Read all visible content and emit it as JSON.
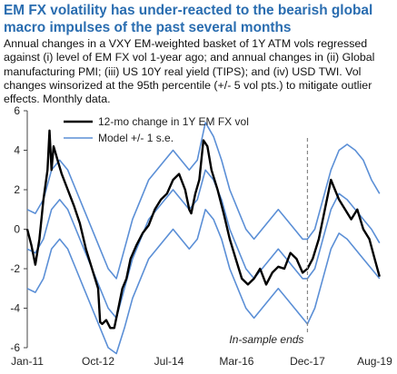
{
  "chart_data": {
    "type": "line",
    "title": "EM FX volatility has under-reacted to the bearish global macro impulses of the past several months",
    "subtitle": "Annual changes in a VXY EM-weighted basket of 1Y ATM vols regressed against (i) level of EM FX vol 1-year ago; and annual changes in (ii) Global manufacturing PMI; (iii) US 10Y real yield (TIPS); and (iv) USD TWI. Vol changes winsorized at the 95th percentile (+/- 5 vol pts.) to mitigate outlier effects. Monthly data.",
    "x_tick_labels": [
      "Jan-11",
      "Oct-12",
      "Jul-14",
      "Mar-16",
      "Dec-17",
      "Aug-19"
    ],
    "x_tick_positions": [
      2011.0,
      2012.75,
      2014.5,
      2016.17,
      2017.92,
      2019.58
    ],
    "xlim": [
      2011.0,
      2019.75
    ],
    "ylim": [
      -6,
      6
    ],
    "y_ticks": [
      -6,
      -4,
      -2,
      0,
      2,
      4,
      6
    ],
    "grid": false,
    "legend_placement": "top-center",
    "annotation": {
      "text": "In-sample ends",
      "x": 2017.92
    },
    "series": [
      {
        "name": "12-mo change in 1Y EM FX vol",
        "color": "#000000",
        "x": [
          2011.0,
          2011.1,
          2011.2,
          2011.3,
          2011.4,
          2011.5,
          2011.55,
          2011.6,
          2011.65,
          2011.75,
          2011.85,
          2012.0,
          2012.15,
          2012.3,
          2012.45,
          2012.6,
          2012.75,
          2012.8,
          2012.85,
          2012.95,
          2013.05,
          2013.15,
          2013.25,
          2013.35,
          2013.45,
          2013.55,
          2013.7,
          2013.85,
          2014.0,
          2014.15,
          2014.3,
          2014.45,
          2014.6,
          2014.75,
          2014.9,
          2015.0,
          2015.05,
          2015.15,
          2015.25,
          2015.35,
          2015.45,
          2015.55,
          2015.7,
          2015.85,
          2016.0,
          2016.15,
          2016.3,
          2016.45,
          2016.6,
          2016.75,
          2016.9,
          2017.05,
          2017.2,
          2017.35,
          2017.5,
          2017.65,
          2017.8,
          2017.92,
          2018.05,
          2018.2,
          2018.35,
          2018.5,
          2018.6,
          2018.7,
          2018.85,
          2019.0,
          2019.15,
          2019.3,
          2019.45,
          2019.58,
          2019.7
        ],
        "y": [
          0.0,
          -0.8,
          -1.8,
          -0.5,
          1.5,
          3.0,
          5.0,
          3.0,
          4.2,
          3.5,
          2.8,
          2.0,
          1.2,
          0.3,
          -1.0,
          -2.0,
          -3.0,
          -4.7,
          -4.8,
          -4.6,
          -5.0,
          -5.0,
          -4.0,
          -3.0,
          -2.5,
          -1.5,
          -0.8,
          -0.2,
          0.2,
          1.0,
          1.5,
          1.8,
          2.5,
          2.8,
          2.0,
          1.0,
          0.8,
          1.8,
          2.5,
          4.5,
          4.2,
          3.0,
          2.0,
          0.8,
          -0.5,
          -1.5,
          -2.5,
          -2.8,
          -2.5,
          -2.0,
          -2.8,
          -2.2,
          -1.9,
          -2.0,
          -1.2,
          -1.5,
          -2.2,
          -2.0,
          -1.5,
          -0.5,
          1.0,
          2.5,
          2.0,
          1.5,
          1.0,
          0.5,
          1.0,
          0.0,
          -0.5,
          -1.5,
          -2.4
        ]
      },
      {
        "name": "Model +/- 1 s.e.",
        "color": "#5b8fd6",
        "x": [
          2011.0,
          2011.2,
          2011.4,
          2011.6,
          2011.8,
          2012.0,
          2012.2,
          2012.4,
          2012.6,
          2012.8,
          2013.0,
          2013.2,
          2013.4,
          2013.6,
          2013.8,
          2014.0,
          2014.2,
          2014.4,
          2014.6,
          2014.8,
          2015.0,
          2015.2,
          2015.4,
          2015.6,
          2015.8,
          2016.0,
          2016.2,
          2016.4,
          2016.6,
          2016.8,
          2017.0,
          2017.2,
          2017.4,
          2017.6,
          2017.8,
          2017.92,
          2018.1,
          2018.3,
          2018.5,
          2018.7,
          2018.9,
          2019.1,
          2019.3,
          2019.5,
          2019.7
        ],
        "y": [
          -1.0,
          -1.2,
          -0.5,
          1.0,
          1.5,
          1.0,
          0.0,
          -1.0,
          -2.0,
          -3.0,
          -4.0,
          -4.5,
          -3.0,
          -1.5,
          -0.5,
          0.5,
          1.0,
          1.5,
          2.0,
          1.5,
          1.0,
          1.5,
          3.0,
          2.5,
          1.5,
          0.0,
          -1.0,
          -2.0,
          -2.5,
          -2.0,
          -1.5,
          -1.0,
          -1.5,
          -2.0,
          -2.5,
          -2.5,
          -2.0,
          -0.5,
          1.0,
          1.8,
          1.5,
          1.0,
          0.5,
          0.0,
          -0.7
        ]
      }
    ],
    "bands": [
      {
        "series": "Model +/- 1 s.e.",
        "bound": "upper",
        "x": [
          2011.0,
          2011.2,
          2011.4,
          2011.6,
          2011.8,
          2012.0,
          2012.2,
          2012.4,
          2012.6,
          2012.8,
          2013.0,
          2013.2,
          2013.4,
          2013.6,
          2013.8,
          2014.0,
          2014.2,
          2014.4,
          2014.6,
          2014.8,
          2015.0,
          2015.2,
          2015.4,
          2015.6,
          2015.8,
          2016.0,
          2016.2,
          2016.4,
          2016.6,
          2016.8,
          2017.0,
          2017.2,
          2017.4,
          2017.6,
          2017.8,
          2017.92,
          2018.1,
          2018.3,
          2018.5,
          2018.7,
          2018.9,
          2019.1,
          2019.3,
          2019.5,
          2019.7
        ],
        "y": [
          1.0,
          0.8,
          1.5,
          3.0,
          3.5,
          3.0,
          2.0,
          1.0,
          0.0,
          -1.0,
          -2.0,
          -2.5,
          -1.0,
          0.5,
          1.5,
          2.5,
          3.0,
          3.5,
          4.0,
          3.5,
          3.0,
          3.5,
          5.4,
          4.7,
          3.5,
          2.0,
          1.0,
          0.0,
          -0.5,
          0.0,
          0.5,
          1.0,
          0.5,
          0.0,
          -0.5,
          -0.5,
          0.0,
          1.5,
          3.0,
          4.0,
          4.3,
          4.0,
          3.5,
          2.5,
          1.8
        ]
      },
      {
        "series": "Model +/- 1 s.e.",
        "bound": "lower",
        "x": [
          2011.0,
          2011.2,
          2011.4,
          2011.6,
          2011.8,
          2012.0,
          2012.2,
          2012.4,
          2012.6,
          2012.8,
          2013.0,
          2013.2,
          2013.4,
          2013.6,
          2013.8,
          2014.0,
          2014.2,
          2014.4,
          2014.6,
          2014.8,
          2015.0,
          2015.2,
          2015.4,
          2015.6,
          2015.8,
          2016.0,
          2016.2,
          2016.4,
          2016.6,
          2016.8,
          2017.0,
          2017.2,
          2017.4,
          2017.6,
          2017.8,
          2017.92,
          2018.1,
          2018.3,
          2018.5,
          2018.7,
          2018.9,
          2019.1,
          2019.3,
          2019.5,
          2019.7
        ],
        "y": [
          -3.0,
          -3.2,
          -2.5,
          -1.0,
          -0.5,
          -1.0,
          -2.0,
          -3.0,
          -4.0,
          -5.0,
          -6.0,
          -6.3,
          -5.0,
          -3.5,
          -2.5,
          -1.5,
          -1.0,
          -0.5,
          0.0,
          -0.5,
          -1.0,
          -0.5,
          1.0,
          0.5,
          -0.5,
          -2.0,
          -3.0,
          -4.0,
          -4.5,
          -4.0,
          -3.5,
          -3.0,
          -3.5,
          -4.0,
          -4.5,
          -4.8,
          -4.0,
          -2.5,
          -1.0,
          -0.2,
          -0.5,
          -1.0,
          -1.5,
          -2.0,
          -2.5
        ]
      }
    ]
  }
}
